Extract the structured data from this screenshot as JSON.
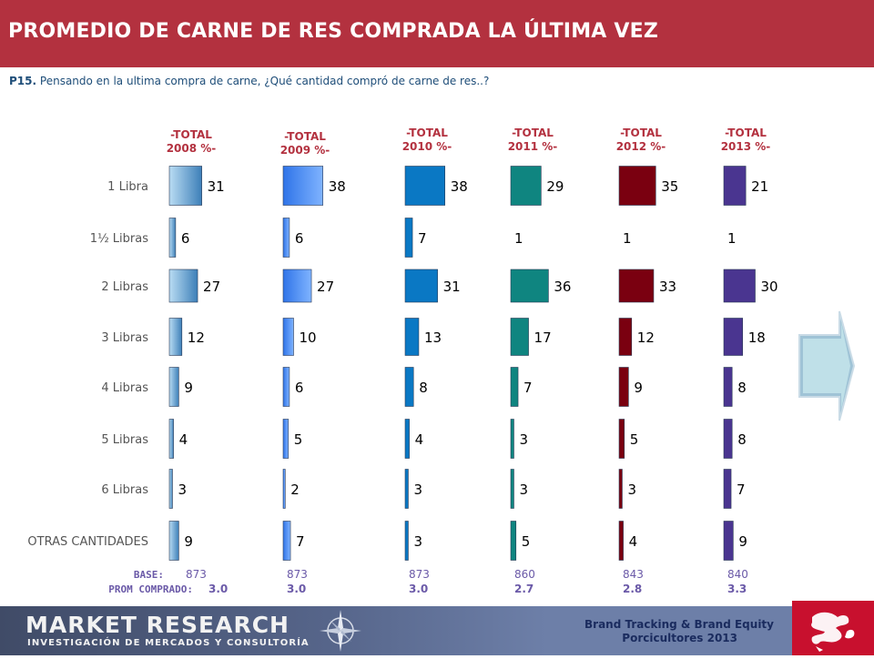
{
  "header": {
    "title": "PROMEDIO DE CARNE DE RES COMPRADA LA ÚLTIMA VEZ"
  },
  "question": {
    "code": "P15.",
    "text": "Pensando en la ultima compra de carne, ¿Qué cantidad compró de carne de res..?"
  },
  "chart_data": {
    "type": "bar",
    "orientation": "horizontal",
    "categories": [
      "1 Libra",
      "1½ Libras",
      "2 Libras",
      "3 Libras",
      "4 Libras",
      "5 Libras",
      "6 Libras",
      "OTRAS CANTIDADES"
    ],
    "series": [
      {
        "name": "-TOTAL 2008 %-",
        "values": [
          31,
          6,
          27,
          12,
          9,
          4,
          3,
          9
        ],
        "color": "#6aa9d8",
        "base": "873",
        "prom": "3.0"
      },
      {
        "name": "-TOTAL 2009 %-",
        "values": [
          38,
          6,
          27,
          10,
          6,
          5,
          2,
          7
        ],
        "color": "#4f8ff7",
        "base": "873",
        "prom": "3.0"
      },
      {
        "name": "-TOTAL 2010 %-",
        "values": [
          38,
          7,
          31,
          13,
          8,
          4,
          3,
          3
        ],
        "color": "#0a78c4",
        "base": "873",
        "prom": "3.0"
      },
      {
        "name": "-TOTAL 2011 %-",
        "values": [
          29,
          1,
          36,
          17,
          7,
          3,
          3,
          5
        ],
        "color": "#0f8580",
        "base": "860",
        "prom": "2.7"
      },
      {
        "name": "-TOTAL 2012 %-",
        "values": [
          35,
          1,
          33,
          12,
          9,
          5,
          3,
          4
        ],
        "color": "#7a0010",
        "base": "843",
        "prom": "2.8"
      },
      {
        "name": "-TOTAL 2013 %-",
        "values": [
          21,
          1,
          30,
          18,
          8,
          8,
          7,
          9
        ],
        "color": "#4a3590",
        "base": "840",
        "prom": "3.3"
      }
    ],
    "base_label": "BASE:",
    "prom_label": "PROM COMPRADO:"
  },
  "footer": {
    "brand": "MARKET RESEARCH",
    "brand_sub": "INVESTIGACIÓN DE MERCADOS Y CONSULTORÍA",
    "line1": "Brand Tracking & Brand Equity",
    "line2": "Porcicultores 2013"
  }
}
